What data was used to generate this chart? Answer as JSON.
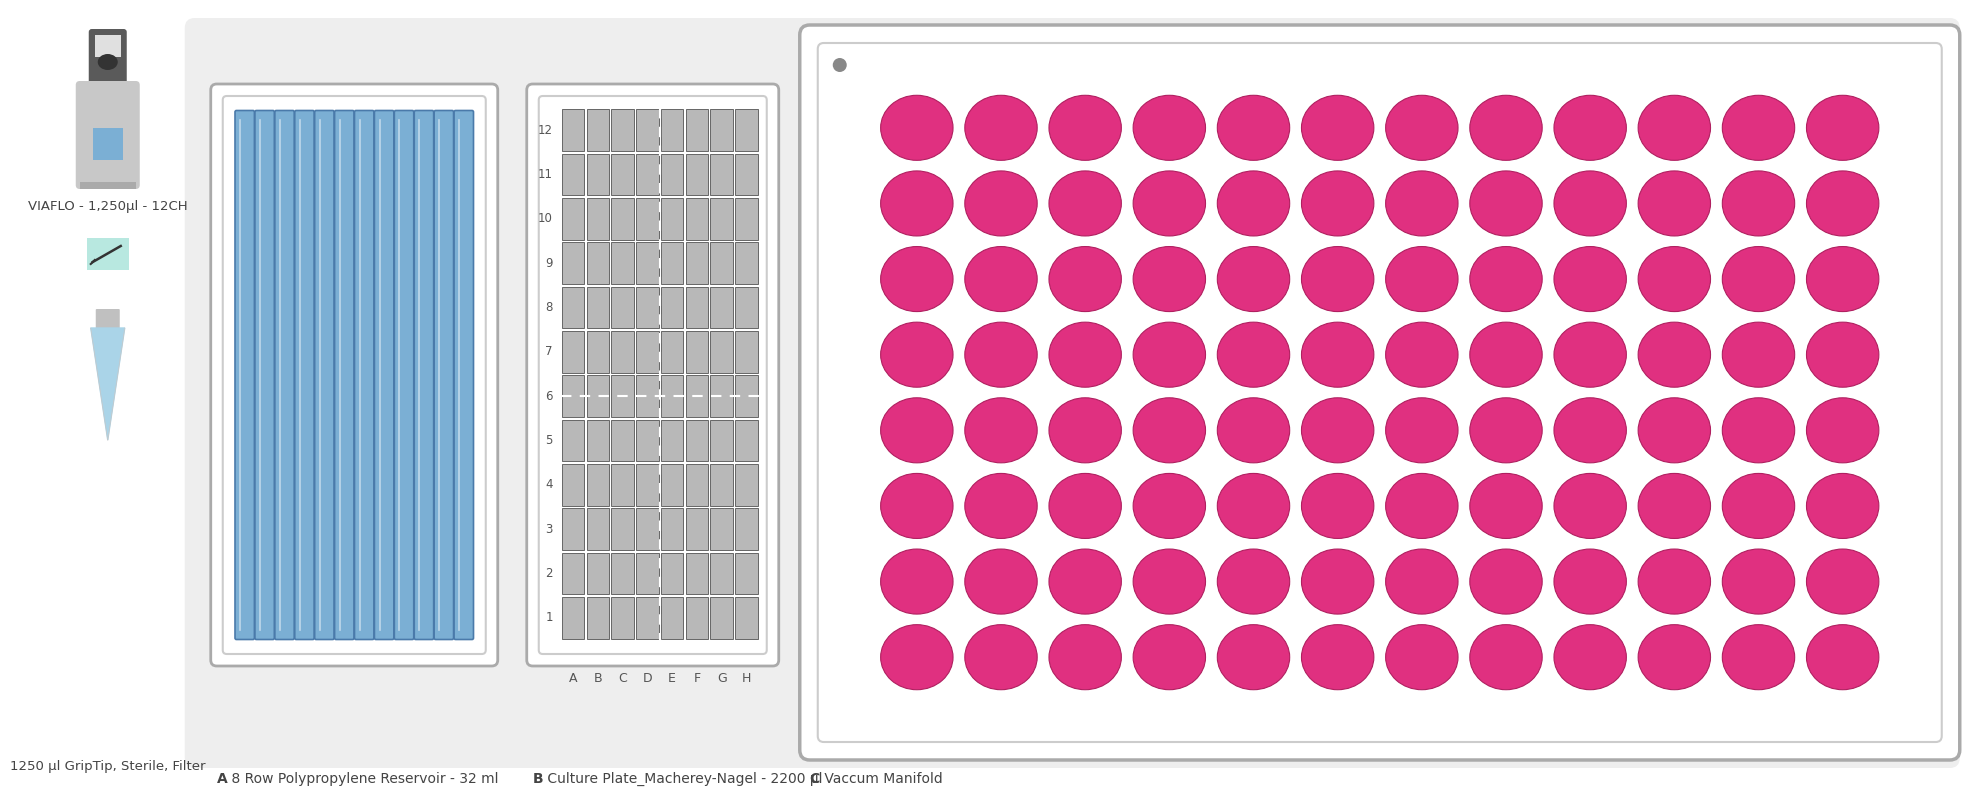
{
  "bg_color": "#ffffff",
  "panel_bg": "#eeeeee",
  "white": "#ffffff",
  "reservoir_color": "#7bafd4",
  "reservoir_edge_color": "#4a7aaa",
  "reservoir_highlight": "#c0d8ea",
  "grid_fill": "#b8b8b8",
  "grid_edge": "#666666",
  "circle_color": "#e03080",
  "circle_edge": "#b02060",
  "tip_blue": "#aad4e8",
  "note_bg": "#b8e8e0",
  "pipette_dark": "#555555",
  "pipette_gray": "#cccccc",
  "pipette_blue": "#7bafd4",
  "outer_edge": "#aaaaaa",
  "inner_edge": "#cccccc",
  "text_color": "#444444",
  "label_color": "#555555",
  "dot_color": "#888888",
  "label_A_bold": "A",
  "label_A_rest": " 8 Row Polypropylene Reservoir - 32 ml",
  "label_B_bold": "B",
  "label_B_rest": " Culture Plate_Macherey-Nagel - 2200 µl",
  "label_C_bold": "C",
  "label_C_rest": " Vaccum Manifold",
  "label_pipette": "VIAFLO - 1,250µl - 12CH",
  "label_tip": "1250 µl GripTip, Sterile, Filter",
  "reservoir_n_cols": 12,
  "plate_rows": 12,
  "plate_cols": 8,
  "manifold_rows": 8,
  "manifold_cols": 12
}
